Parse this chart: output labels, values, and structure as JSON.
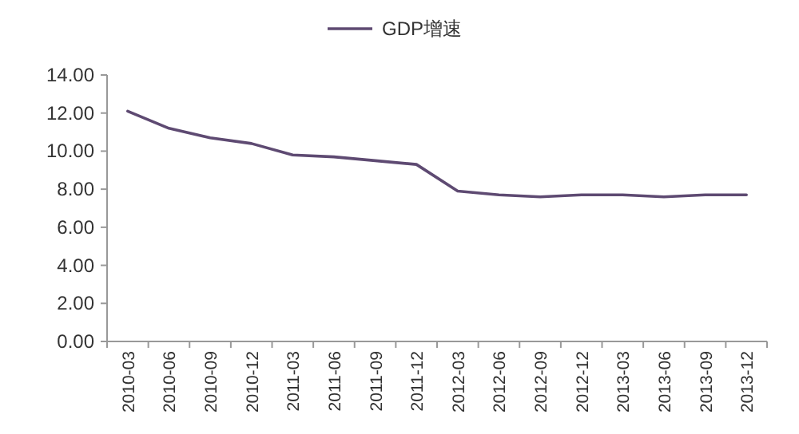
{
  "chart_data": {
    "type": "line",
    "legend": "top",
    "marker": "none",
    "line_style": "solid",
    "grid": false,
    "categories": [
      "2010-03",
      "2010-06",
      "2010-09",
      "2010-12",
      "2011-03",
      "2011-06",
      "2011-09",
      "2011-12",
      "2012-03",
      "2012-06",
      "2012-09",
      "2012-12",
      "2013-03",
      "2013-06",
      "2013-09",
      "2013-12"
    ],
    "series": [
      {
        "name": "GDP增速",
        "color": "#5e4a72",
        "values": [
          12.1,
          11.2,
          10.7,
          10.4,
          9.8,
          9.7,
          9.5,
          9.3,
          7.9,
          7.7,
          7.6,
          7.7,
          7.7,
          7.6,
          7.7,
          7.7
        ]
      }
    ],
    "ylim": [
      0,
      14
    ],
    "yticks": [
      {
        "value": 0,
        "label": "0.00"
      },
      {
        "value": 2,
        "label": "2.00"
      },
      {
        "value": 4,
        "label": "4.00"
      },
      {
        "value": 6,
        "label": "6.00"
      },
      {
        "value": 8,
        "label": "8.00"
      },
      {
        "value": 10,
        "label": "10.00"
      },
      {
        "value": 12,
        "label": "12.00"
      },
      {
        "value": 14,
        "label": "14.00"
      }
    ]
  }
}
